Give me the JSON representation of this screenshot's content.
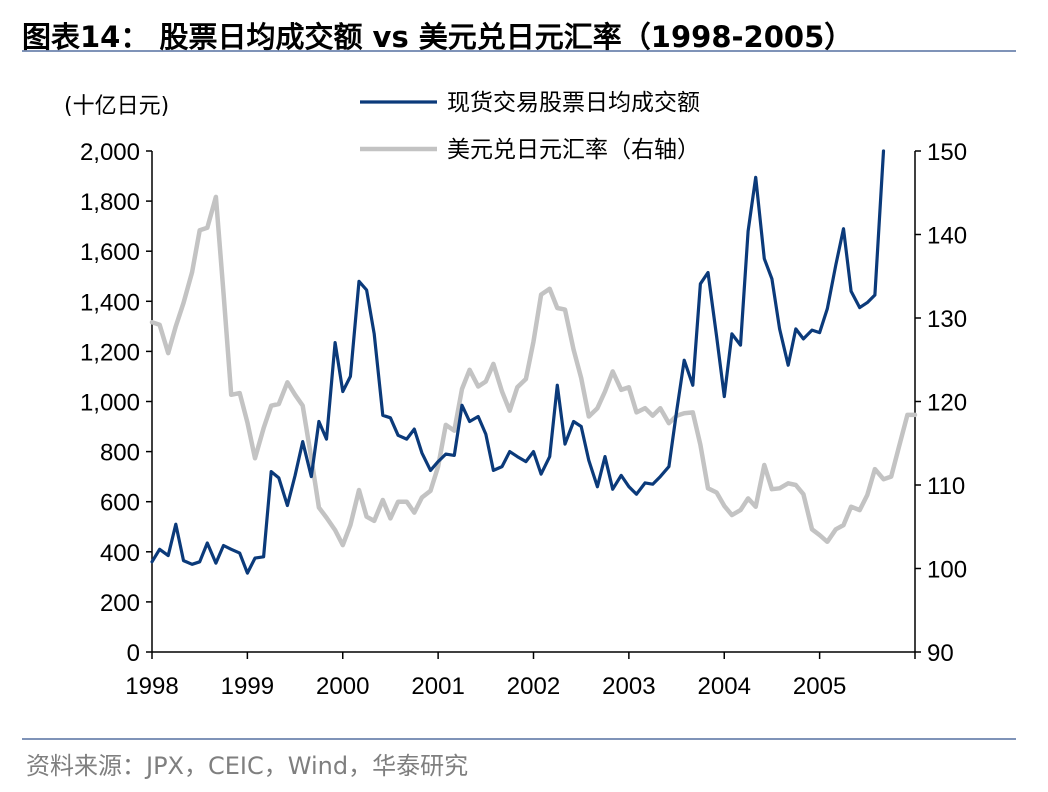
{
  "header": {
    "title": "图表14：  股票日均成交额 vs 美元兑日元汇率（1998-2005）"
  },
  "footer": {
    "source": "资料来源：JPX，CEIC，Wind，华泰研究"
  },
  "colors": {
    "turnover": "#0b3a7a",
    "usdjpy": "#c3c3c3",
    "rule": "#7f93b8"
  },
  "chart_data": {
    "type": "line",
    "left_unit_label": "(十亿日元)",
    "left_axis": {
      "min": 0,
      "max": 2000,
      "ticks": [
        "0",
        "200",
        "400",
        "600",
        "800",
        "1,000",
        "1,200",
        "1,400",
        "1,600",
        "1,800",
        "2,000"
      ]
    },
    "right_axis": {
      "min": 90,
      "max": 150,
      "ticks": [
        "90",
        "100",
        "110",
        "120",
        "130",
        "140",
        "150"
      ]
    },
    "x_axis": {
      "min": 1998,
      "max": 2006,
      "ticks": [
        "1998",
        "1999",
        "2000",
        "2001",
        "2002",
        "2003",
        "2004",
        "2005"
      ]
    },
    "legend_position": "top-center",
    "series": [
      {
        "name": "现货交易股票日均成交额",
        "axis": "left",
        "x": [
          1998.0,
          1998.08,
          1998.17,
          1998.25,
          1998.33,
          1998.42,
          1998.5,
          1998.58,
          1998.67,
          1998.75,
          1998.83,
          1998.92,
          1999.0,
          1999.08,
          1999.17,
          1999.25,
          1999.33,
          1999.42,
          1999.5,
          1999.58,
          1999.67,
          1999.75,
          1999.83,
          1999.92,
          2000.0,
          2000.08,
          2000.17,
          2000.25,
          2000.33,
          2000.42,
          2000.5,
          2000.58,
          2000.67,
          2000.75,
          2000.83,
          2000.92,
          2001.0,
          2001.08,
          2001.17,
          2001.25,
          2001.33,
          2001.42,
          2001.5,
          2001.58,
          2001.67,
          2001.75,
          2001.83,
          2001.92,
          2002.0,
          2002.08,
          2002.17,
          2002.25,
          2002.33,
          2002.42,
          2002.5,
          2002.58,
          2002.67,
          2002.75,
          2002.83,
          2002.92,
          2003.0,
          2003.08,
          2003.17,
          2003.25,
          2003.33,
          2003.42,
          2003.5,
          2003.58,
          2003.67,
          2003.75,
          2003.83,
          2003.92,
          2004.0,
          2004.08,
          2004.17,
          2004.25,
          2004.33,
          2004.42,
          2004.5,
          2004.58,
          2004.67,
          2004.75,
          2004.83,
          2004.92,
          2005.0,
          2005.08,
          2005.17,
          2005.25,
          2005.33,
          2005.42,
          2005.5,
          2005.58,
          2005.67
        ],
        "values": [
          360,
          410,
          385,
          510,
          365,
          350,
          360,
          435,
          355,
          425,
          410,
          395,
          315,
          375,
          380,
          720,
          695,
          585,
          705,
          840,
          700,
          920,
          850,
          1235,
          1040,
          1100,
          1480,
          1445,
          1270,
          945,
          935,
          865,
          850,
          890,
          795,
          725,
          760,
          790,
          785,
          985,
          920,
          940,
          870,
          725,
          740,
          800,
          780,
          760,
          800,
          710,
          780,
          1065,
          830,
          920,
          900,
          765,
          660,
          780,
          650,
          705,
          660,
          630,
          675,
          670,
          700,
          740,
          960,
          1165,
          1065,
          1470,
          1515,
          1260,
          1020,
          1270,
          1225,
          1680,
          1895,
          1570,
          1490,
          1290,
          1145,
          1290,
          1250,
          1285,
          1275,
          1370,
          1545,
          1690,
          1440,
          1375,
          1395,
          1425,
          2000
        ]
      },
      {
        "name": "美元兑日元汇率（右轴）",
        "axis": "right",
        "x": [
          1998.0,
          1998.08,
          1998.17,
          1998.25,
          1998.33,
          1998.42,
          1998.5,
          1998.58,
          1998.67,
          1998.75,
          1998.83,
          1998.92,
          1999.0,
          1999.08,
          1999.17,
          1999.25,
          1999.33,
          1999.42,
          1999.5,
          1999.58,
          1999.67,
          1999.75,
          1999.83,
          1999.92,
          2000.0,
          2000.08,
          2000.17,
          2000.25,
          2000.33,
          2000.42,
          2000.5,
          2000.58,
          2000.67,
          2000.75,
          2000.83,
          2000.92,
          2001.0,
          2001.08,
          2001.17,
          2001.25,
          2001.33,
          2001.42,
          2001.5,
          2001.58,
          2001.67,
          2001.75,
          2001.83,
          2001.92,
          2002.0,
          2002.08,
          2002.17,
          2002.25,
          2002.33,
          2002.42,
          2002.5,
          2002.58,
          2002.67,
          2002.75,
          2002.83,
          2002.92,
          2003.0,
          2003.08,
          2003.17,
          2003.25,
          2003.33,
          2003.42,
          2003.5,
          2003.58,
          2003.67,
          2003.75,
          2003.83,
          2003.92,
          2004.0,
          2004.08,
          2004.17,
          2004.25,
          2004.33,
          2004.42,
          2004.5,
          2004.58,
          2004.67,
          2004.75,
          2004.83,
          2004.92,
          2005.0,
          2005.08,
          2005.17,
          2005.25,
          2005.33,
          2005.42,
          2005.5,
          2005.58,
          2005.67,
          2005.75,
          2005.83,
          2005.92,
          2006.0
        ],
        "values": [
          129.5,
          129.2,
          125.8,
          129.0,
          131.8,
          135.5,
          140.5,
          140.8,
          144.5,
          133.0,
          120.8,
          121.0,
          117.5,
          113.2,
          116.8,
          119.5,
          119.7,
          122.3,
          120.8,
          119.5,
          113.2,
          107.3,
          106.1,
          104.6,
          102.8,
          105.2,
          109.4,
          106.2,
          105.7,
          108.2,
          106.0,
          108.0,
          108.0,
          106.7,
          108.5,
          109.3,
          112.2,
          117.2,
          116.5,
          121.5,
          123.8,
          121.8,
          122.4,
          124.5,
          121.2,
          118.9,
          121.7,
          122.7,
          127.2,
          132.8,
          133.5,
          131.2,
          131.0,
          126.2,
          122.8,
          118.2,
          119.2,
          121.2,
          123.6,
          121.4,
          121.7,
          118.7,
          119.2,
          118.3,
          119.2,
          117.4,
          118.3,
          118.6,
          118.7,
          114.8,
          109.6,
          109.1,
          107.5,
          106.4,
          107.0,
          108.4,
          107.4,
          112.4,
          109.5,
          109.6,
          110.2,
          110.0,
          108.9,
          104.7,
          104.0,
          103.2,
          104.7,
          105.2,
          107.4,
          107.0,
          108.8,
          111.9,
          110.7,
          111.0,
          114.5,
          118.4,
          118.4
        ]
      }
    ]
  }
}
